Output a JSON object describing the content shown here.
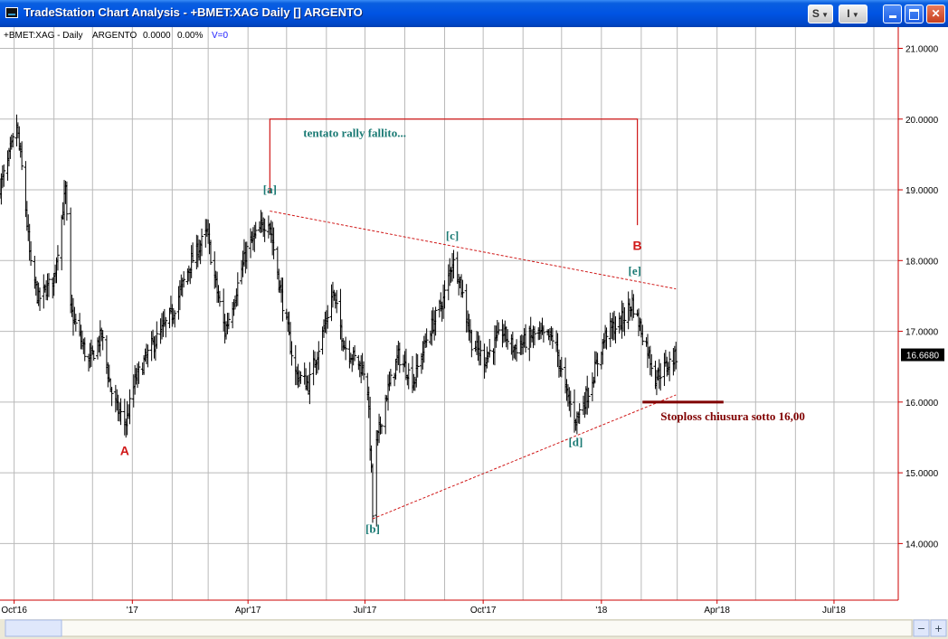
{
  "window": {
    "title": "TradeStation Chart Analysis - +BMET:XAG Daily [] ARGENTO",
    "buttons": {
      "style": "S",
      "indicator": "I"
    }
  },
  "header": {
    "symbol": "+BMET:XAG - Daily",
    "name": "ARGENTO",
    "change": "0.0000",
    "change_pct": "0.00%",
    "volume": "V=0"
  },
  "last_price_label": "16.6680",
  "colors": {
    "bars": "#000000",
    "annotations_teal": "#1a7a74",
    "annotations_red": "#d01818",
    "stoploss": "#800000",
    "axis": "#cc0000"
  },
  "chart_data": {
    "type": "ohlc",
    "title": "",
    "xlabel": "",
    "ylabel": "",
    "xlim": [
      "2016-09-20",
      "2018-08-20"
    ],
    "ylim": [
      13.2,
      21.3
    ],
    "grid": true,
    "y_ticks": [
      "21.0000",
      "20.0000",
      "19.0000",
      "18.0000",
      "17.0000",
      "16.0000",
      "15.0000",
      "14.0000"
    ],
    "x_ticks": [
      {
        "date": "2016-10-01",
        "label": "Oct'16"
      },
      {
        "date": "2017-01-01",
        "label": "'17"
      },
      {
        "date": "2017-04-01",
        "label": "Apr'17"
      },
      {
        "date": "2017-07-01",
        "label": "Jul'17"
      },
      {
        "date": "2017-10-01",
        "label": "Oct'17"
      },
      {
        "date": "2018-01-01",
        "label": "'18"
      },
      {
        "date": "2018-04-01",
        "label": "Apr'18"
      },
      {
        "date": "2018-07-01",
        "label": "Jul'18"
      }
    ],
    "price_path": [
      [
        "2016-09-20",
        19.05
      ],
      [
        "2016-09-25",
        19.3
      ],
      [
        "2016-10-03",
        19.9
      ],
      [
        "2016-10-08",
        19.15
      ],
      [
        "2016-10-14",
        17.9
      ],
      [
        "2016-10-20",
        17.45
      ],
      [
        "2016-11-01",
        17.75
      ],
      [
        "2016-11-07",
        18.6
      ],
      [
        "2016-11-10",
        19.0
      ],
      [
        "2016-11-14",
        17.3
      ],
      [
        "2016-11-28",
        16.55
      ],
      [
        "2016-12-08",
        16.95
      ],
      [
        "2016-12-15",
        16.2
      ],
      [
        "2016-12-20",
        15.9
      ],
      [
        "2016-12-27",
        15.7
      ],
      [
        "2017-01-03",
        16.3
      ],
      [
        "2017-01-15",
        16.75
      ],
      [
        "2017-02-01",
        17.25
      ],
      [
        "2017-02-15",
        17.95
      ],
      [
        "2017-02-28",
        18.4
      ],
      [
        "2017-03-06",
        17.75
      ],
      [
        "2017-03-14",
        17.0
      ],
      [
        "2017-03-21",
        17.45
      ],
      [
        "2017-03-31",
        18.15
      ],
      [
        "2017-04-07",
        18.35
      ],
      [
        "2017-04-17",
        18.6
      ],
      [
        "2017-04-27",
        17.5
      ],
      [
        "2017-05-08",
        16.4
      ],
      [
        "2017-05-18",
        16.25
      ],
      [
        "2017-05-31",
        17.1
      ],
      [
        "2017-06-06",
        17.55
      ],
      [
        "2017-06-15",
        16.8
      ],
      [
        "2017-06-30",
        16.45
      ],
      [
        "2017-07-03",
        16.2
      ],
      [
        "2017-07-06",
        15.0
      ],
      [
        "2017-07-07",
        14.4
      ],
      [
        "2017-07-10",
        15.4
      ],
      [
        "2017-07-17",
        16.05
      ],
      [
        "2017-07-27",
        16.65
      ],
      [
        "2017-08-08",
        16.3
      ],
      [
        "2017-08-18",
        16.9
      ],
      [
        "2017-08-31",
        17.45
      ],
      [
        "2017-09-07",
        18.0
      ],
      [
        "2017-09-12",
        17.8
      ],
      [
        "2017-09-22",
        16.85
      ],
      [
        "2017-10-02",
        16.6
      ],
      [
        "2017-10-16",
        17.0
      ],
      [
        "2017-10-25",
        16.75
      ],
      [
        "2017-11-10",
        16.95
      ],
      [
        "2017-11-25",
        16.9
      ],
      [
        "2017-12-05",
        16.1
      ],
      [
        "2017-12-12",
        15.75
      ],
      [
        "2017-12-22",
        16.15
      ],
      [
        "2018-01-05",
        17.0
      ],
      [
        "2018-01-15",
        17.1
      ],
      [
        "2018-01-25",
        17.4
      ],
      [
        "2018-02-05",
        16.8
      ],
      [
        "2018-02-12",
        16.35
      ],
      [
        "2018-02-20",
        16.5
      ],
      [
        "2018-02-28",
        16.65
      ]
    ],
    "wave_labels": [
      {
        "label": "A",
        "date": "2016-12-26",
        "price": 15.25,
        "color": "red"
      },
      {
        "label": "[a]",
        "date": "2017-04-18",
        "price": 18.95,
        "color": "teal"
      },
      {
        "label": "[b]",
        "date": "2017-07-07",
        "price": 14.15,
        "color": "teal"
      },
      {
        "label": "[c]",
        "date": "2017-09-07",
        "price": 18.3,
        "color": "teal"
      },
      {
        "label": "[d]",
        "date": "2017-12-12",
        "price": 15.38,
        "color": "teal"
      },
      {
        "label": "B",
        "date": "2018-01-29",
        "price": 18.15,
        "color": "red"
      },
      {
        "label": "[e]",
        "date": "2018-01-27",
        "price": 17.8,
        "color": "teal"
      }
    ],
    "trendlines": [
      {
        "name": "upper",
        "from": [
          "2017-04-18",
          18.7
        ],
        "to": [
          "2018-02-28",
          17.6
        ]
      },
      {
        "name": "lower",
        "from": [
          "2017-07-07",
          14.35
        ],
        "to": [
          "2018-02-28",
          16.1
        ]
      }
    ],
    "bracket": {
      "from": [
        "2017-04-18",
        18.95
      ],
      "top": 20.0,
      "to": [
        "2018-01-29",
        18.5
      ]
    },
    "annotations": {
      "rally": {
        "text": "tentato rally fallito...",
        "date": "2017-05-14",
        "price": 19.75
      },
      "stoploss": {
        "text": "Stoploss  chiusura sotto 16,00",
        "price": 16.0,
        "from": "2018-02-02",
        "to": "2018-04-06"
      }
    },
    "last_price": 16.668
  }
}
